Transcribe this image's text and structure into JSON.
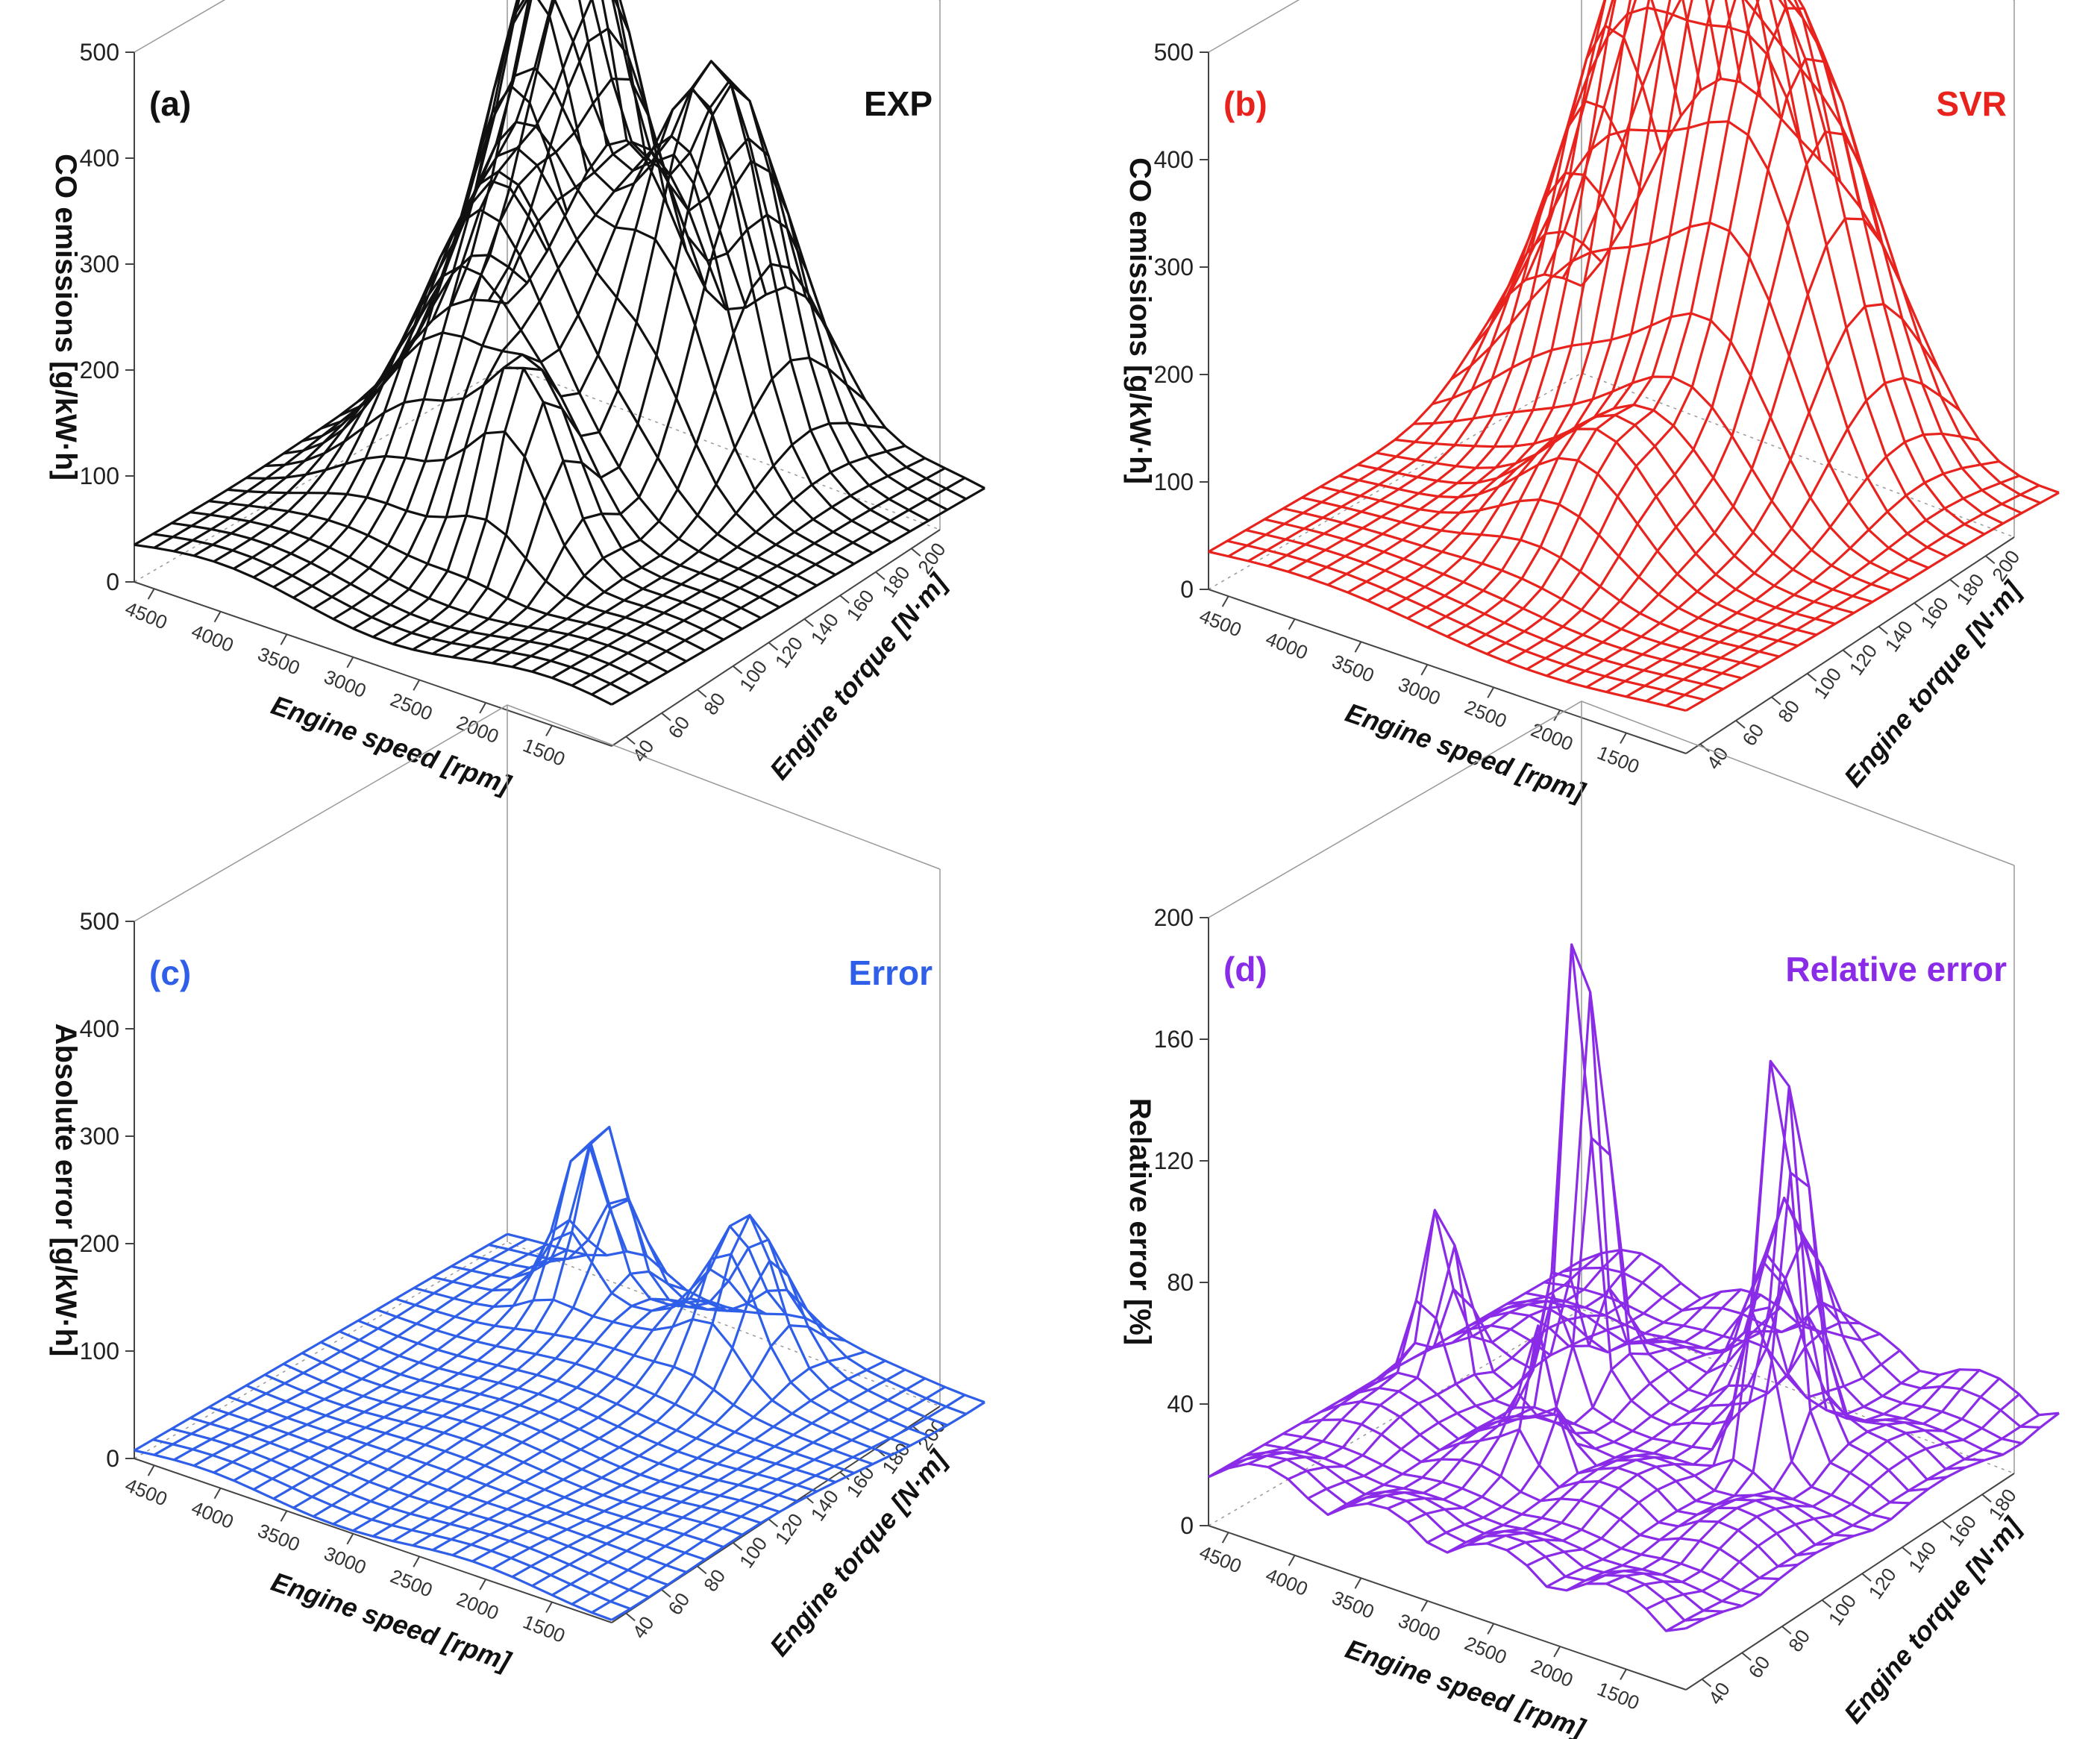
{
  "figure_type": "3D wireframe surface comparison",
  "chart_data": [
    {
      "panel_label": "(a)",
      "title": "EXP",
      "type": "surface-wireframe",
      "color": "#111111",
      "zlabel": "CO emissions [g/kW·h]",
      "xlabel": "Engine speed [rpm]",
      "ylabel": "Engine torque [N·m]",
      "zlim": [
        0,
        500
      ],
      "zticks": [
        "0",
        "100",
        "200",
        "300",
        "400",
        "500"
      ],
      "xticks": [
        "4500",
        "4000",
        "3500",
        "3000",
        "2500",
        "2000",
        "1500"
      ],
      "yticks": [
        "40",
        "60",
        "80",
        "100",
        "120",
        "140",
        "160",
        "180",
        "200"
      ],
      "surface": "measured CO emissions: ~30-60 g/kW·h baseline across the map, rising to a broad high-load region of ~400-500 g/kW·h (peak ~500 near 3500-4000 rpm at high torque), with secondary ridges ~150-200 g/kW·h"
    },
    {
      "panel_label": "(b)",
      "title": "SVR",
      "type": "surface-wireframe",
      "color": "#e8231d",
      "zlabel": "CO emissions [g/kW·h]",
      "xlabel": "Engine speed [rpm]",
      "ylabel": "Engine torque [N·m]",
      "zlim": [
        0,
        500
      ],
      "zticks": [
        "0",
        "100",
        "200",
        "300",
        "400",
        "500"
      ],
      "xticks": [
        "4500",
        "4000",
        "3500",
        "3000",
        "2500",
        "2000",
        "1500"
      ],
      "yticks": [
        "40",
        "60",
        "80",
        "100",
        "120",
        "140",
        "160",
        "180",
        "200"
      ],
      "surface": "SVR-predicted CO emissions: smooth version of EXP, ~30-60 baseline, high-load plateau ~400-500 g/kW·h"
    },
    {
      "panel_label": "(c)",
      "title": "Error",
      "type": "surface-wireframe",
      "color": "#2f5fe8",
      "zlabel": "Absolute error [g/kW·h]",
      "xlabel": "Engine speed [rpm]",
      "ylabel": "Engine torque [N·m]",
      "zlim": [
        0,
        500
      ],
      "zticks": [
        "0",
        "100",
        "200",
        "300",
        "400",
        "500"
      ],
      "xticks": [
        "4500",
        "4000",
        "3500",
        "3000",
        "2500",
        "2000",
        "1500"
      ],
      "yticks": [
        "40",
        "60",
        "80",
        "100",
        "120",
        "140",
        "160",
        "180",
        "200"
      ],
      "surface": "absolute error mostly ~0-20 g/kW·h, with two local peaks of ~150-190 g/kW·h at high torque"
    },
    {
      "panel_label": "(d)",
      "title": "Relative error",
      "type": "surface-wireframe",
      "color": "#8a2be8",
      "zlabel": "Relative error [%]",
      "xlabel": "Engine speed [rpm]",
      "ylabel": "Engine torque [N·m]",
      "zlim": [
        0,
        200
      ],
      "zticks": [
        "0",
        "40",
        "80",
        "120",
        "160",
        "200"
      ],
      "xticks": [
        "4500",
        "4000",
        "3500",
        "3000",
        "2500",
        "2000",
        "1500"
      ],
      "yticks": [
        "40",
        "60",
        "80",
        "100",
        "120",
        "140",
        "160",
        "180"
      ],
      "surface": "relative error mostly ~5-40 %, with sharp spikes up to ~190 % and ~150 %"
    }
  ]
}
